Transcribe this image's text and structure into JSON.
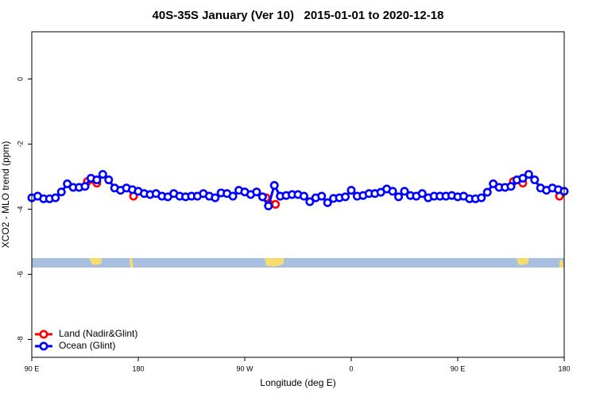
{
  "chart_data": {
    "type": "line",
    "title": "40S-35S January (Ver 10)   2015-01-01 to 2020-12-18",
    "xlabel": "Longitude (deg E)",
    "ylabel": "XCO2 - MLO trend (ppm)",
    "xlim": [
      90,
      540
    ],
    "ylim": [
      -8.55,
      1.45
    ],
    "xticks": [
      {
        "value": 90,
        "label": "90 E"
      },
      180,
      {
        "value": 270,
        "label": "90 W"
      },
      {
        "value": 360,
        "label": "0"
      },
      {
        "value": 450,
        "label": "90 E"
      },
      {
        "value": 540,
        "label": "180"
      }
    ],
    "yticks": [
      0,
      -2,
      -4,
      -6,
      -8
    ],
    "legend": "bottomleft",
    "series": [
      {
        "name": "Land (Nadir&Glint)",
        "color": "#ff0000",
        "x": [
          137,
          145,
          160,
          176,
          230,
          288,
          296,
          400,
          497,
          505,
          520,
          536
        ],
        "values": [
          -3.15,
          -3.2,
          null,
          -3.6,
          null,
          -3.65,
          -3.85,
          null,
          -3.15,
          -3.2,
          null,
          -3.6
        ]
      },
      {
        "name": "Ocean (Glint)",
        "color": "#0000ff",
        "x": [
          90,
          95,
          100,
          105,
          110,
          115,
          120,
          125,
          130,
          135,
          140,
          145,
          150,
          155,
          160,
          165,
          170,
          175,
          180,
          185,
          190,
          195,
          200,
          205,
          210,
          215,
          220,
          225,
          230,
          235,
          240,
          245,
          250,
          255,
          260,
          265,
          270,
          275,
          280,
          285,
          290,
          295,
          300,
          305,
          310,
          315,
          320,
          325,
          330,
          335,
          340,
          345,
          350,
          355,
          360,
          365,
          370,
          375,
          380,
          385,
          390,
          395,
          400,
          405,
          410,
          415,
          420,
          425,
          430,
          435,
          440,
          445,
          450,
          455,
          460,
          465,
          470,
          475,
          480,
          485,
          490,
          495,
          500,
          505,
          510,
          515,
          520,
          525,
          530,
          535,
          540
        ],
        "values": [
          -3.65,
          -3.6,
          -3.68,
          -3.68,
          -3.65,
          -3.47,
          -3.22,
          -3.33,
          -3.33,
          -3.3,
          -3.05,
          -3.1,
          -2.93,
          -3.1,
          -3.35,
          -3.42,
          -3.35,
          -3.4,
          -3.45,
          -3.52,
          -3.55,
          -3.52,
          -3.6,
          -3.62,
          -3.52,
          -3.6,
          -3.62,
          -3.6,
          -3.6,
          -3.52,
          -3.6,
          -3.65,
          -3.5,
          -3.52,
          -3.6,
          -3.42,
          -3.47,
          -3.55,
          -3.47,
          -3.62,
          -3.9,
          -3.27,
          -3.6,
          -3.58,
          -3.55,
          -3.55,
          -3.6,
          -3.77,
          -3.65,
          -3.6,
          -3.8,
          -3.67,
          -3.65,
          -3.62,
          -3.42,
          -3.6,
          -3.58,
          -3.52,
          -3.52,
          -3.48,
          -3.38,
          -3.45,
          -3.62,
          -3.45,
          -3.58,
          -3.6,
          -3.52,
          -3.65,
          -3.6,
          -3.6,
          -3.6,
          -3.58,
          -3.62,
          -3.6,
          -3.68,
          -3.68,
          -3.65,
          -3.48,
          -3.22,
          -3.33,
          -3.33,
          -3.3,
          -3.1,
          -3.05,
          -2.93,
          -3.1,
          -3.35,
          -3.42,
          -3.35,
          -3.4,
          -3.45
        ]
      }
    ]
  }
}
